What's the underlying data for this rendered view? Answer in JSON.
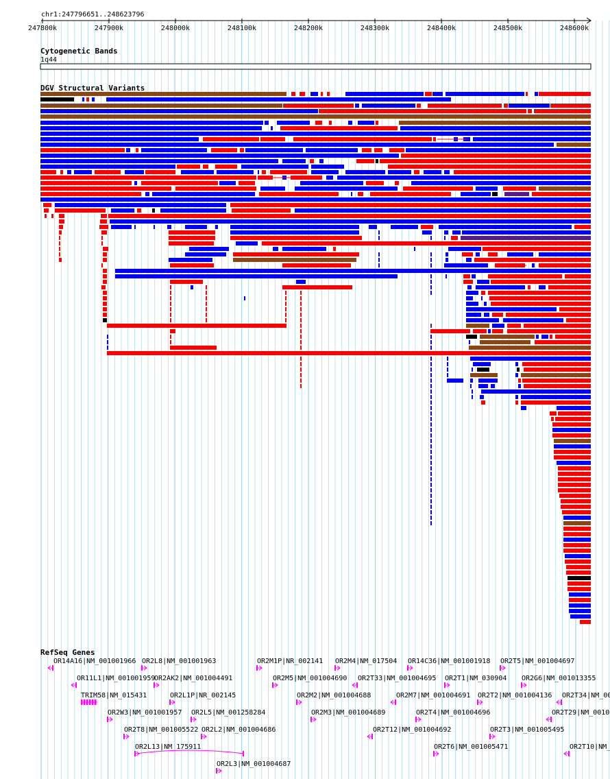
{
  "location": "chr1:247796651..248623796",
  "ruler": {
    "ticks": [
      "247800k",
      "247900k",
      "248000k",
      "248100k",
      "248200k",
      "248300k",
      "248400k",
      "248500k",
      "248600k"
    ]
  },
  "tracks": {
    "cytoband": {
      "title": "Cytogenetic Bands",
      "band": "1q44"
    },
    "dgv": {
      "title": "DGV Structural Variants"
    },
    "refseq": {
      "title": "RefSeq Genes"
    }
  },
  "colors": {
    "gain": "#ff0000",
    "loss": "#0000ff",
    "both": "#8b4513",
    "inversion": "#551a8b",
    "other": "#000000",
    "gene": "#ff00ff",
    "grid": "#add8e6"
  },
  "genes": [
    {
      "label": "OR14A16|NM_001001966",
      "strand": "-"
    },
    {
      "label": "OR2L8|NM_001001963",
      "strand": "+"
    },
    {
      "label": "OR2M1P|NR_002141",
      "strand": "+"
    },
    {
      "label": "OR2M4|NM_017504",
      "strand": "+"
    },
    {
      "label": "OR14C36|NM_001001918",
      "strand": "+"
    },
    {
      "label": "OR2T5|NM_001004697",
      "strand": "+"
    },
    {
      "label": "OR11L1|NM_001001959",
      "strand": "-"
    },
    {
      "label": "OR2AK2|NM_001004491",
      "strand": "+"
    },
    {
      "label": "OR2M5|NM_001004690",
      "strand": "+"
    },
    {
      "label": "OR2T33|NM_001004695",
      "strand": "-"
    },
    {
      "label": "OR2T1|NM_030904",
      "strand": "+"
    },
    {
      "label": "OR2G6|NM_001013355",
      "strand": "+"
    },
    {
      "label": "TRIM58|NM_015431",
      "strand": "+"
    },
    {
      "label": "OR2L1P|NR_002145",
      "strand": "+"
    },
    {
      "label": "OR2M2|NM_001004688",
      "strand": "+"
    },
    {
      "label": "OR2M7|NM_001004691",
      "strand": "-"
    },
    {
      "label": "OR2T2|NM_001004136",
      "strand": "+"
    },
    {
      "label": "OR2T34|NM_001",
      "strand": "-"
    },
    {
      "label": "OR2W3|NM_001001957",
      "strand": "+"
    },
    {
      "label": "OR2L5|NM_001258284",
      "strand": "+"
    },
    {
      "label": "OR2M3|NM_001004689",
      "strand": "+"
    },
    {
      "label": "OR2T4|NM_001004696",
      "strand": "+"
    },
    {
      "label": "OR2T29|NM_00100",
      "strand": "-"
    },
    {
      "label": "OR2T8|NM_001005522",
      "strand": "+"
    },
    {
      "label": "OR2L2|NM_001004686",
      "strand": "+"
    },
    {
      "label": "OR2T12|NM_001004692",
      "strand": "-"
    },
    {
      "label": "OR2T3|NM_001005495",
      "strand": "+"
    },
    {
      "label": "OR2L13|NM_175911",
      "strand": "+"
    },
    {
      "label": "OR2T6|NM_001005471",
      "strand": "+"
    },
    {
      "label": "OR2T10|NM_",
      "strand": "-"
    },
    {
      "label": "OR2L3|NM_001004687",
      "strand": "+"
    }
  ]
}
